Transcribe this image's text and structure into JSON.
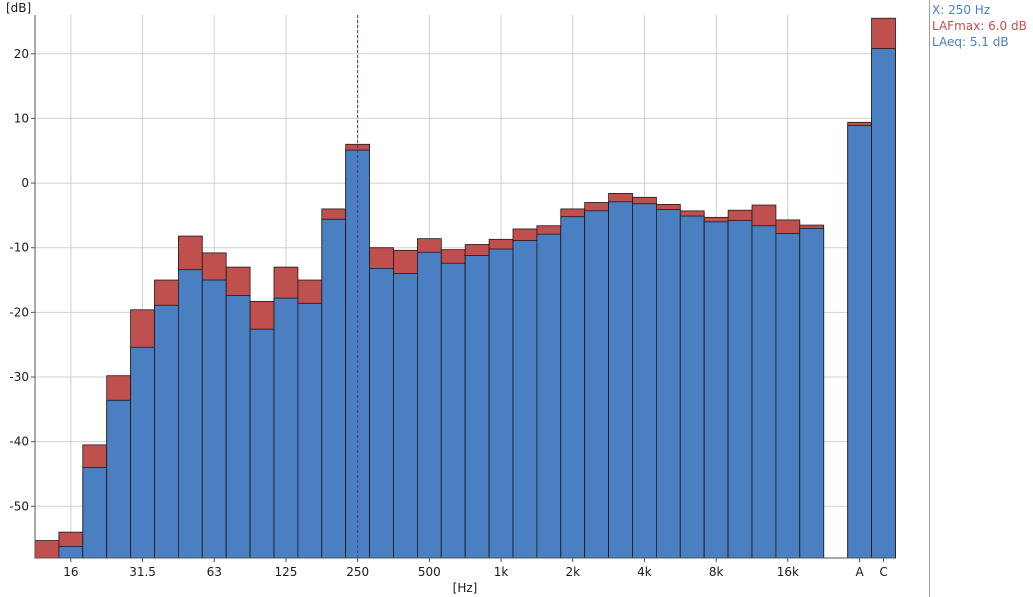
{
  "readout": {
    "x": "X: 250 Hz",
    "lafmax": "LAFmax: 6.0 dB",
    "laeq": "LAeq: 5.1 dB",
    "x_color": "#4a7fc1",
    "lafmax_color": "#c0504d",
    "laeq_color": "#4a7fc1"
  },
  "chart_data": {
    "type": "bar",
    "ylabel": "[dB]",
    "xlabel": "[Hz]",
    "ylim": [
      -58,
      26
    ],
    "yticks": [
      20,
      10,
      0,
      -10,
      -20,
      -30,
      -40,
      -50
    ],
    "grid": true,
    "stacked_overlay": true,
    "cursor_band": "250",
    "categories": [
      "12.5",
      "16",
      "20",
      "25",
      "31.5",
      "40",
      "50",
      "63",
      "80",
      "100",
      "125",
      "160",
      "200",
      "250",
      "315",
      "400",
      "500",
      "630",
      "800",
      "1k",
      "1.25k",
      "1.6k",
      "2k",
      "2.5k",
      "3.15k",
      "4k",
      "5k",
      "6.3k",
      "8k",
      "10k",
      "12.5k",
      "16k",
      "20k",
      "A",
      "C"
    ],
    "category_tick_labels": [
      "16",
      "31.5",
      "63",
      "125",
      "250",
      "500",
      "1k",
      "2k",
      "4k",
      "8k",
      "16k",
      "A",
      "C"
    ],
    "series": [
      {
        "name": "LAFmax",
        "color": "#c0504d",
        "values": [
          -55.3,
          -54.0,
          -40.5,
          -29.8,
          -19.6,
          -15.0,
          -8.2,
          -10.8,
          -13.0,
          -18.3,
          -13.0,
          -15.0,
          -4.0,
          6.0,
          -10.0,
          -10.4,
          -8.6,
          -10.3,
          -9.5,
          -8.7,
          -7.1,
          -6.6,
          -4.0,
          -3.0,
          -1.6,
          -2.2,
          -3.3,
          -4.3,
          -5.3,
          -4.2,
          -3.4,
          -5.7,
          -6.5,
          9.4,
          25.5
        ]
      },
      {
        "name": "LAeq",
        "color": "#4a7fc1",
        "values": [
          null,
          -56.2,
          -44.0,
          -33.6,
          -25.4,
          -18.9,
          -13.4,
          -15.0,
          -17.4,
          -22.6,
          -17.8,
          -18.6,
          -5.6,
          5.1,
          -13.2,
          -14.0,
          -10.7,
          -12.4,
          -11.2,
          -10.2,
          -8.9,
          -7.9,
          -5.2,
          -4.3,
          -2.9,
          -3.2,
          -4.1,
          -5.1,
          -6.0,
          -5.8,
          -6.6,
          -7.8,
          -7.0,
          8.9,
          20.8
        ]
      }
    ]
  }
}
